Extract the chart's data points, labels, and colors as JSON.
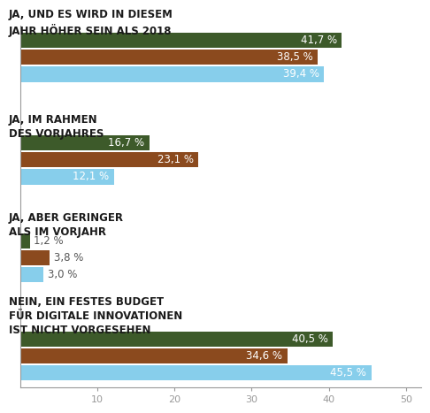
{
  "categories": [
    "JA, UND ES WIRD IN DIESEM\nJAHR HÖHER SEIN ALS 2018",
    "JA, IM RAHMEN\nDES VORJAHRES",
    "JA, ABER GERINGER\nALS IM VORJAHR",
    "NEIN, EIN FESTES BUDGET\nFÜR DIGITALE INNOVATIONEN\nIST NICHT VORGESEHEN"
  ],
  "series": [
    {
      "name": "green",
      "color": "#3d5a2a",
      "values": [
        41.7,
        16.7,
        1.2,
        40.5
      ]
    },
    {
      "name": "brown",
      "color": "#8b4a1e",
      "values": [
        38.5,
        23.1,
        3.8,
        34.6
      ]
    },
    {
      "name": "blue",
      "color": "#87ceeb",
      "values": [
        39.4,
        12.1,
        3.0,
        45.5
      ]
    }
  ],
  "bar_height": 0.17,
  "xlim": [
    0,
    52
  ],
  "background_color": "#ffffff",
  "text_color": "#1a1a1a",
  "label_fontsize": 8.5,
  "value_fontsize": 8.5,
  "axis_color": "#999999",
  "xtick_positions": [
    10,
    20,
    30,
    40,
    50
  ],
  "group_centers": [
    3.35,
    2.2,
    1.1,
    0.0
  ],
  "bar_offsets": [
    0.19,
    0.0,
    -0.19
  ]
}
